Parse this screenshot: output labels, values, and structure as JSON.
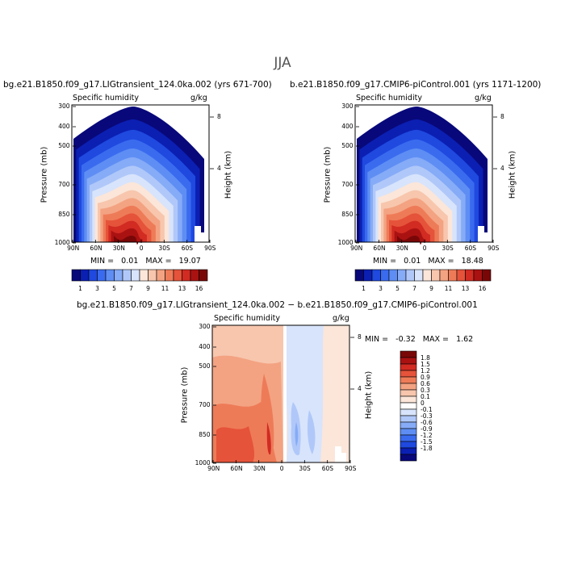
{
  "main_title": "JJA",
  "palette_full": [
    "#08087a",
    "#0b1fb3",
    "#1f49df",
    "#3a6bef",
    "#5e8ef4",
    "#86abf7",
    "#b0c8f9",
    "#d8e4fb",
    "#fbe6d9",
    "#f7c6ad",
    "#f3a382",
    "#ee7b58",
    "#e5533a",
    "#d12b22",
    "#aa1212",
    "#7a0707"
  ],
  "palette_diff": [
    "#08087a",
    "#0b1fb3",
    "#1f49df",
    "#3a6bef",
    "#5e8ef4",
    "#86abf7",
    "#b0c8f9",
    "#d8e4fb",
    "#ffffff",
    "#fbe6d9",
    "#f7c6ad",
    "#f3a382",
    "#ee7b58",
    "#e5533a",
    "#d12b22",
    "#aa1212",
    "#7a0707"
  ],
  "chart_data": [
    {
      "type": "heatmap",
      "title": "bg.e21.B1850.f09_g17.LIGtransient_124.0ka.002 (yrs 671-700)",
      "subtitle_left": "Specific humidity",
      "subtitle_right": "g/kg",
      "xlabel": "",
      "ylabel": "Pressure (mb)",
      "y2label": "Height (km)",
      "xticks": [
        "90N",
        "60N",
        "30N",
        "0",
        "30S",
        "60S",
        "90S"
      ],
      "yticks": [
        "300",
        "400",
        "500",
        "700",
        "850",
        "1000"
      ],
      "y2ticks": [
        "8",
        "4"
      ],
      "min": "0.01",
      "max": "19.07",
      "colorbar_labels": [
        "1",
        "3",
        "5",
        "7",
        "9",
        "11",
        "13",
        "16"
      ]
    },
    {
      "type": "heatmap",
      "title": "b.e21.B1850.f09_g17.CMIP6-piControl.001 (yrs 1171-1200)",
      "subtitle_left": "Specific humidity",
      "subtitle_right": "g/kg",
      "xlabel": "",
      "ylabel": "Pressure (mb)",
      "y2label": "Height (km)",
      "xticks": [
        "90N",
        "60N",
        "30N",
        "0",
        "30S",
        "60S",
        "90S"
      ],
      "yticks": [
        "300",
        "400",
        "500",
        "700",
        "850",
        "1000"
      ],
      "y2ticks": [
        "8",
        "4"
      ],
      "min": "0.01",
      "max": "18.48",
      "colorbar_labels": [
        "1",
        "3",
        "5",
        "7",
        "9",
        "11",
        "13",
        "16"
      ]
    },
    {
      "type": "heatmap",
      "title": "bg.e21.B1850.f09_g17.LIGtransient_124.0ka.002 − b.e21.B1850.f09_g17.CMIP6-piControl.001",
      "subtitle_left": "Specific humidity",
      "subtitle_right": "g/kg",
      "xlabel": "",
      "ylabel": "Pressure (mb)",
      "y2label": "Height (km)",
      "xticks": [
        "90N",
        "60N",
        "30N",
        "0",
        "30S",
        "60S",
        "90S"
      ],
      "yticks": [
        "300",
        "400",
        "500",
        "700",
        "850",
        "1000"
      ],
      "y2ticks": [
        "8",
        "4"
      ],
      "min": "-0.32",
      "max": "1.62",
      "colorbar_labels": [
        "1.8",
        "1.5",
        "1.2",
        "0.9",
        "0.6",
        "0.3",
        "0.1",
        "0",
        "-0.1",
        "-0.3",
        "-0.6",
        "-0.9",
        "-1.2",
        "-1.5",
        "-1.8"
      ]
    }
  ]
}
